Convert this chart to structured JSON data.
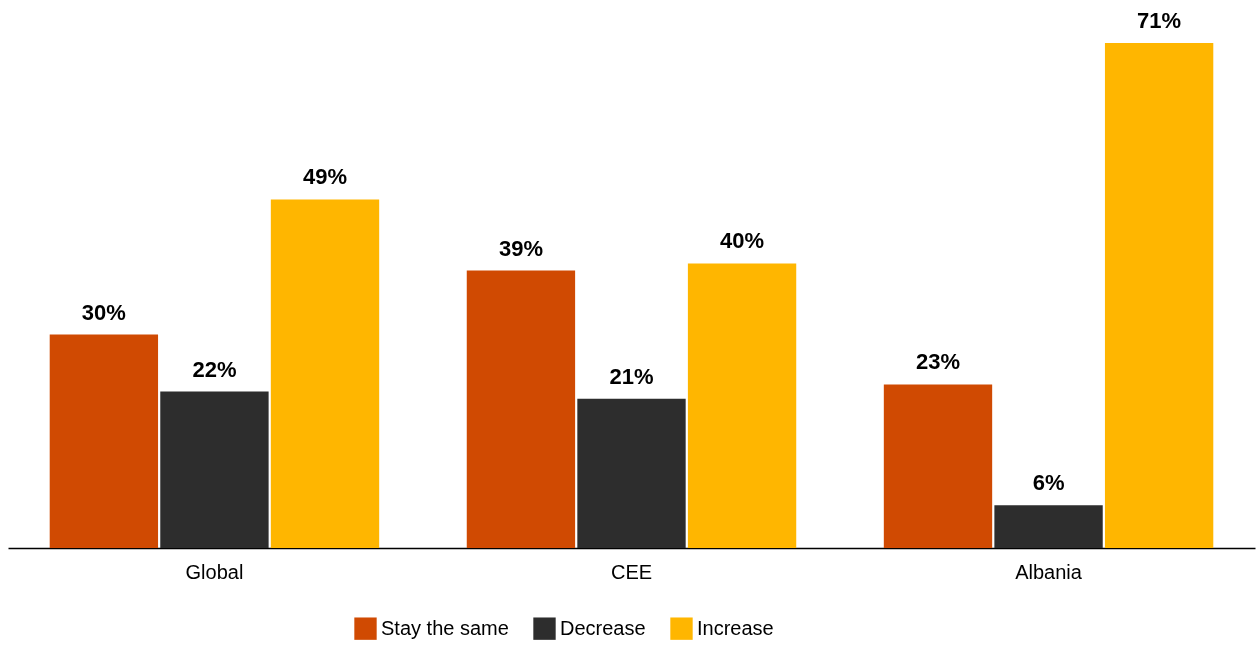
{
  "chart_data": {
    "type": "bar",
    "categories": [
      "Global",
      "CEE",
      "Albania"
    ],
    "series": [
      {
        "name": "Stay the same",
        "color": "#d04a02",
        "values": [
          30,
          39,
          23
        ],
        "value_labels": [
          "30%",
          "39%",
          "23%"
        ]
      },
      {
        "name": "Decrease",
        "color": "#2d2d2d",
        "values": [
          22,
          21,
          6
        ],
        "value_labels": [
          "22%",
          "21%",
          "6%"
        ]
      },
      {
        "name": "Increase",
        "color": "#ffb600",
        "values": [
          49,
          40,
          71
        ],
        "value_labels": [
          "49%",
          "40%",
          "71%"
        ]
      }
    ],
    "legend": "bottom",
    "grid": false
  }
}
